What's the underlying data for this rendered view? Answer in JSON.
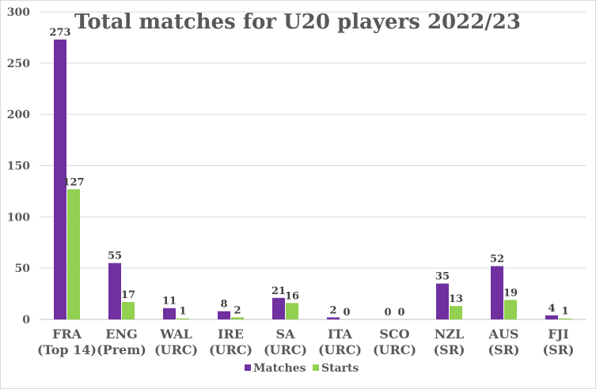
{
  "chart_data": {
    "type": "bar",
    "title": "Total matches for U20 players 2022/23",
    "xlabel": "",
    "ylabel": "",
    "ylim": [
      0,
      300
    ],
    "yticks": [
      0,
      50,
      100,
      150,
      200,
      250,
      300
    ],
    "grid": true,
    "legend": "bottom",
    "categories": [
      [
        "FRA",
        "(Top 14)"
      ],
      [
        "ENG",
        "(Prem)"
      ],
      [
        "WAL",
        "(URC)"
      ],
      [
        "IRE",
        "(URC)"
      ],
      [
        "SA",
        "(URC)"
      ],
      [
        "ITA",
        "(URC)"
      ],
      [
        "SCO",
        "(URC)"
      ],
      [
        "NZL",
        "(SR)"
      ],
      [
        "AUS",
        "(SR)"
      ],
      [
        "FJI",
        "(SR)"
      ]
    ],
    "series": [
      {
        "name": "Matches",
        "color": "#7030A0",
        "values": [
          273,
          55,
          11,
          8,
          21,
          2,
          0,
          35,
          52,
          4
        ]
      },
      {
        "name": "Starts",
        "color": "#92D050",
        "values": [
          127,
          17,
          1,
          2,
          16,
          0,
          0,
          13,
          19,
          1
        ]
      }
    ]
  }
}
